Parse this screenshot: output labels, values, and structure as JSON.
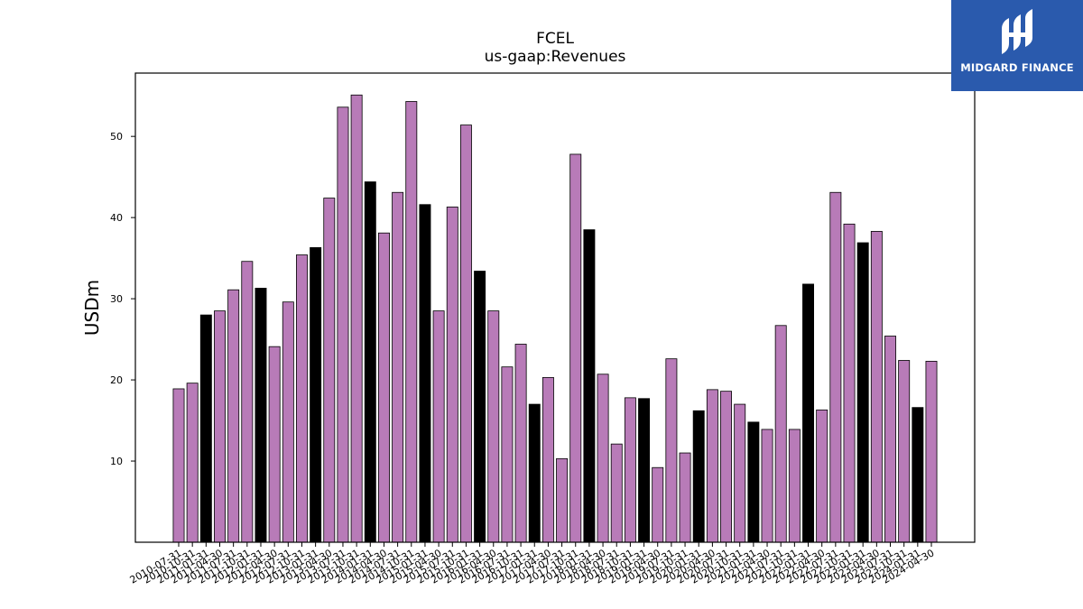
{
  "colors": {
    "normal": "#b87bb8",
    "quarter_end": "#000000",
    "edge": "#000000",
    "logo_bg": "#2a5aad"
  },
  "logo": {
    "text": "MIDGARD FINANCE",
    "icon": "midgard-logo-icon"
  },
  "chart_data": {
    "type": "bar",
    "title": "FCEL",
    "subtitle": "us-gaap:Revenues",
    "xlabel": "",
    "ylabel": "USDm",
    "ylim": [
      0,
      57.8
    ],
    "yticks": [
      10,
      20,
      30,
      40,
      50
    ],
    "grid": false,
    "categories": [
      "2010-07-31",
      "2010-10-31",
      "2011-01-31",
      "2011-04-30",
      "2011-07-31",
      "2011-10-31",
      "2012-01-31",
      "2012-04-30",
      "2012-07-31",
      "2012-10-31",
      "2013-01-31",
      "2013-04-30",
      "2013-07-31",
      "2013-10-31",
      "2014-01-31",
      "2014-04-30",
      "2014-07-31",
      "2014-10-31",
      "2015-01-31",
      "2015-04-30",
      "2015-07-31",
      "2015-10-31",
      "2016-01-31",
      "2016-04-30",
      "2016-07-31",
      "2016-10-31",
      "2017-01-31",
      "2017-04-30",
      "2017-07-31",
      "2017-10-31",
      "2018-01-31",
      "2018-04-30",
      "2018-07-31",
      "2018-10-31",
      "2019-01-31",
      "2019-04-30",
      "2019-07-31",
      "2019-10-31",
      "2020-01-31",
      "2020-04-30",
      "2020-07-31",
      "2020-10-31",
      "2021-01-31",
      "2021-04-30",
      "2021-07-31",
      "2021-10-31",
      "2022-01-31",
      "2022-04-30",
      "2022-07-31",
      "2022-10-31",
      "2023-01-31",
      "2023-04-30",
      "2023-07-31",
      "2023-10-31",
      "2024-01-31",
      "2024-04-30"
    ],
    "values": [
      18.9,
      19.6,
      28.0,
      28.5,
      31.1,
      34.6,
      31.3,
      24.1,
      29.6,
      35.4,
      36.3,
      42.4,
      53.6,
      55.1,
      44.4,
      38.1,
      43.1,
      54.3,
      41.6,
      28.5,
      41.3,
      51.4,
      33.4,
      28.5,
      21.6,
      24.4,
      17.0,
      20.3,
      10.3,
      47.8,
      38.5,
      20.7,
      12.1,
      17.8,
      17.7,
      9.2,
      22.6,
      11.0,
      16.2,
      18.8,
      18.6,
      17.0,
      14.8,
      13.9,
      26.7,
      13.9,
      31.8,
      16.3,
      43.1,
      39.2,
      36.9,
      38.3,
      25.4,
      22.4,
      16.6,
      22.3
    ],
    "quarter_end_black": [
      false,
      false,
      true,
      false,
      false,
      false,
      true,
      false,
      false,
      false,
      true,
      false,
      false,
      false,
      true,
      false,
      false,
      false,
      true,
      false,
      false,
      false,
      true,
      false,
      false,
      false,
      true,
      false,
      false,
      false,
      true,
      false,
      false,
      false,
      true,
      false,
      false,
      false,
      true,
      false,
      false,
      false,
      true,
      false,
      false,
      false,
      true,
      false,
      false,
      false,
      true,
      false,
      false,
      false,
      true,
      false
    ]
  }
}
